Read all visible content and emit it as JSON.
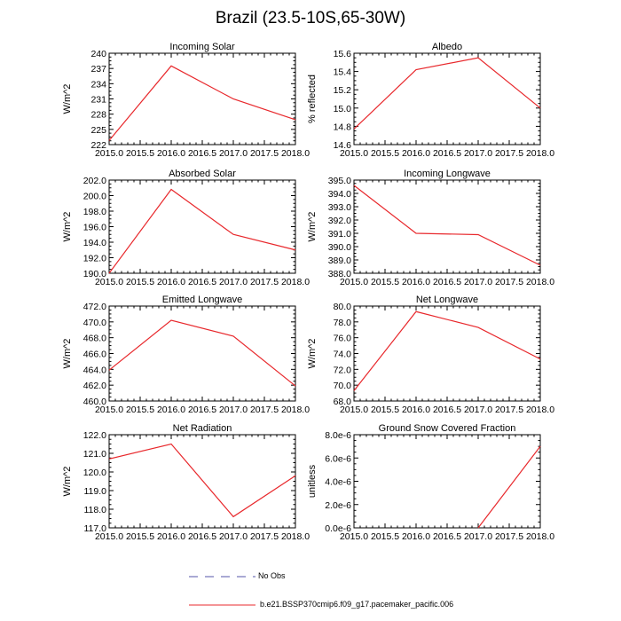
{
  "figure_title": "Brazil (23.5-10S,65-30W)",
  "legend": [
    {
      "label": "No Obs",
      "color": "#5555aa",
      "dash": true
    },
    {
      "label": "b.e21.BSSP370cmip6.f09_g17.pacemaker_pacific.006",
      "color": "#e8282c",
      "dash": false
    }
  ],
  "chart_data": [
    {
      "type": "line",
      "title": "Incoming Solar",
      "ylabel": "W/m^2",
      "x": [
        2015,
        2016,
        2017,
        2018
      ],
      "series": [
        {
          "values": [
            222.8,
            237.5,
            231.0,
            226.9
          ]
        }
      ],
      "xlim": [
        2015,
        2018
      ],
      "ylim": [
        222,
        240
      ],
      "xticks": [
        "2015.0",
        "2015.5",
        "2016.0",
        "2016.5",
        "2017.0",
        "2017.5",
        "2018.0"
      ],
      "yticks": [
        "222",
        "225",
        "228",
        "231",
        "234",
        "237",
        "240"
      ]
    },
    {
      "type": "line",
      "title": "Albedo",
      "ylabel": "% reflected",
      "x": [
        2015,
        2016,
        2017,
        2018
      ],
      "series": [
        {
          "values": [
            14.77,
            15.42,
            15.55,
            15.0
          ]
        }
      ],
      "xlim": [
        2015,
        2018
      ],
      "ylim": [
        14.6,
        15.6
      ],
      "xticks": [
        "2015.0",
        "2015.5",
        "2016.0",
        "2016.5",
        "2017.0",
        "2017.5",
        "2018.0"
      ],
      "yticks": [
        "14.6",
        "14.8",
        "15.0",
        "15.2",
        "15.4",
        "15.6"
      ]
    },
    {
      "type": "line",
      "title": "Absorbed Solar",
      "ylabel": "W/m^2",
      "x": [
        2015,
        2016,
        2017,
        2018
      ],
      "series": [
        {
          "values": [
            190.0,
            200.8,
            195.0,
            193.0
          ]
        }
      ],
      "xlim": [
        2015,
        2018
      ],
      "ylim": [
        190,
        202
      ],
      "xticks": [
        "2015.0",
        "2015.5",
        "2016.0",
        "2016.5",
        "2017.0",
        "2017.5",
        "2018.0"
      ],
      "yticks": [
        "190.0",
        "192.0",
        "194.0",
        "196.0",
        "198.0",
        "200.0",
        "202.0"
      ]
    },
    {
      "type": "line",
      "title": "Incoming Longwave",
      "ylabel": "W/m^2",
      "x": [
        2015,
        2016,
        2017,
        2018
      ],
      "series": [
        {
          "values": [
            394.6,
            391.0,
            390.9,
            388.6
          ]
        }
      ],
      "xlim": [
        2015,
        2018
      ],
      "ylim": [
        388,
        395
      ],
      "xticks": [
        "2015.0",
        "2015.5",
        "2016.0",
        "2016.5",
        "2017.0",
        "2017.5",
        "2018.0"
      ],
      "yticks": [
        "388.0",
        "389.0",
        "390.0",
        "391.0",
        "392.0",
        "393.0",
        "394.0",
        "395.0"
      ]
    },
    {
      "type": "line",
      "title": "Emitted Longwave",
      "ylabel": "W/m^2",
      "x": [
        2015,
        2016,
        2017,
        2018
      ],
      "series": [
        {
          "values": [
            463.9,
            470.2,
            468.2,
            461.9
          ]
        }
      ],
      "xlim": [
        2015,
        2018
      ],
      "ylim": [
        460,
        472
      ],
      "xticks": [
        "2015.0",
        "2015.5",
        "2016.0",
        "2016.5",
        "2017.0",
        "2017.5",
        "2018.0"
      ],
      "yticks": [
        "460.0",
        "462.0",
        "464.0",
        "466.0",
        "468.0",
        "470.0",
        "472.0"
      ]
    },
    {
      "type": "line",
      "title": "Net Longwave",
      "ylabel": "W/m^2",
      "x": [
        2015,
        2016,
        2017,
        2018
      ],
      "series": [
        {
          "values": [
            69.3,
            79.3,
            77.3,
            73.3
          ]
        }
      ],
      "xlim": [
        2015,
        2018
      ],
      "ylim": [
        68,
        80
      ],
      "xticks": [
        "2015.0",
        "2015.5",
        "2016.0",
        "2016.5",
        "2017.0",
        "2017.5",
        "2018.0"
      ],
      "yticks": [
        "68.0",
        "70.0",
        "72.0",
        "74.0",
        "76.0",
        "78.0",
        "80.0"
      ]
    },
    {
      "type": "line",
      "title": "Net Radiation",
      "ylabel": "W/m^2",
      "x": [
        2015,
        2016,
        2017,
        2018
      ],
      "series": [
        {
          "values": [
            120.7,
            121.5,
            117.6,
            119.8
          ]
        }
      ],
      "xlim": [
        2015,
        2018
      ],
      "ylim": [
        117,
        122
      ],
      "xticks": [
        "2015.0",
        "2015.5",
        "2016.0",
        "2016.5",
        "2017.0",
        "2017.5",
        "2018.0"
      ],
      "yticks": [
        "117.0",
        "118.0",
        "119.0",
        "120.0",
        "121.0",
        "122.0"
      ]
    },
    {
      "type": "line",
      "title": "Ground Snow Covered Fraction",
      "ylabel": "unitless",
      "x": [
        2017,
        2018
      ],
      "series": [
        {
          "values": [
            0.0,
            7e-06
          ]
        }
      ],
      "xlim": [
        2015,
        2018
      ],
      "ylim": [
        0,
        8e-06
      ],
      "xticks": [
        "2015.0",
        "2015.5",
        "2016.0",
        "2016.5",
        "2017.0",
        "2017.5",
        "2018.0"
      ],
      "yticks": [
        "0.0e-6",
        "2.0e-6",
        "4.0e-6",
        "6.0e-6",
        "8.0e-6"
      ]
    }
  ]
}
